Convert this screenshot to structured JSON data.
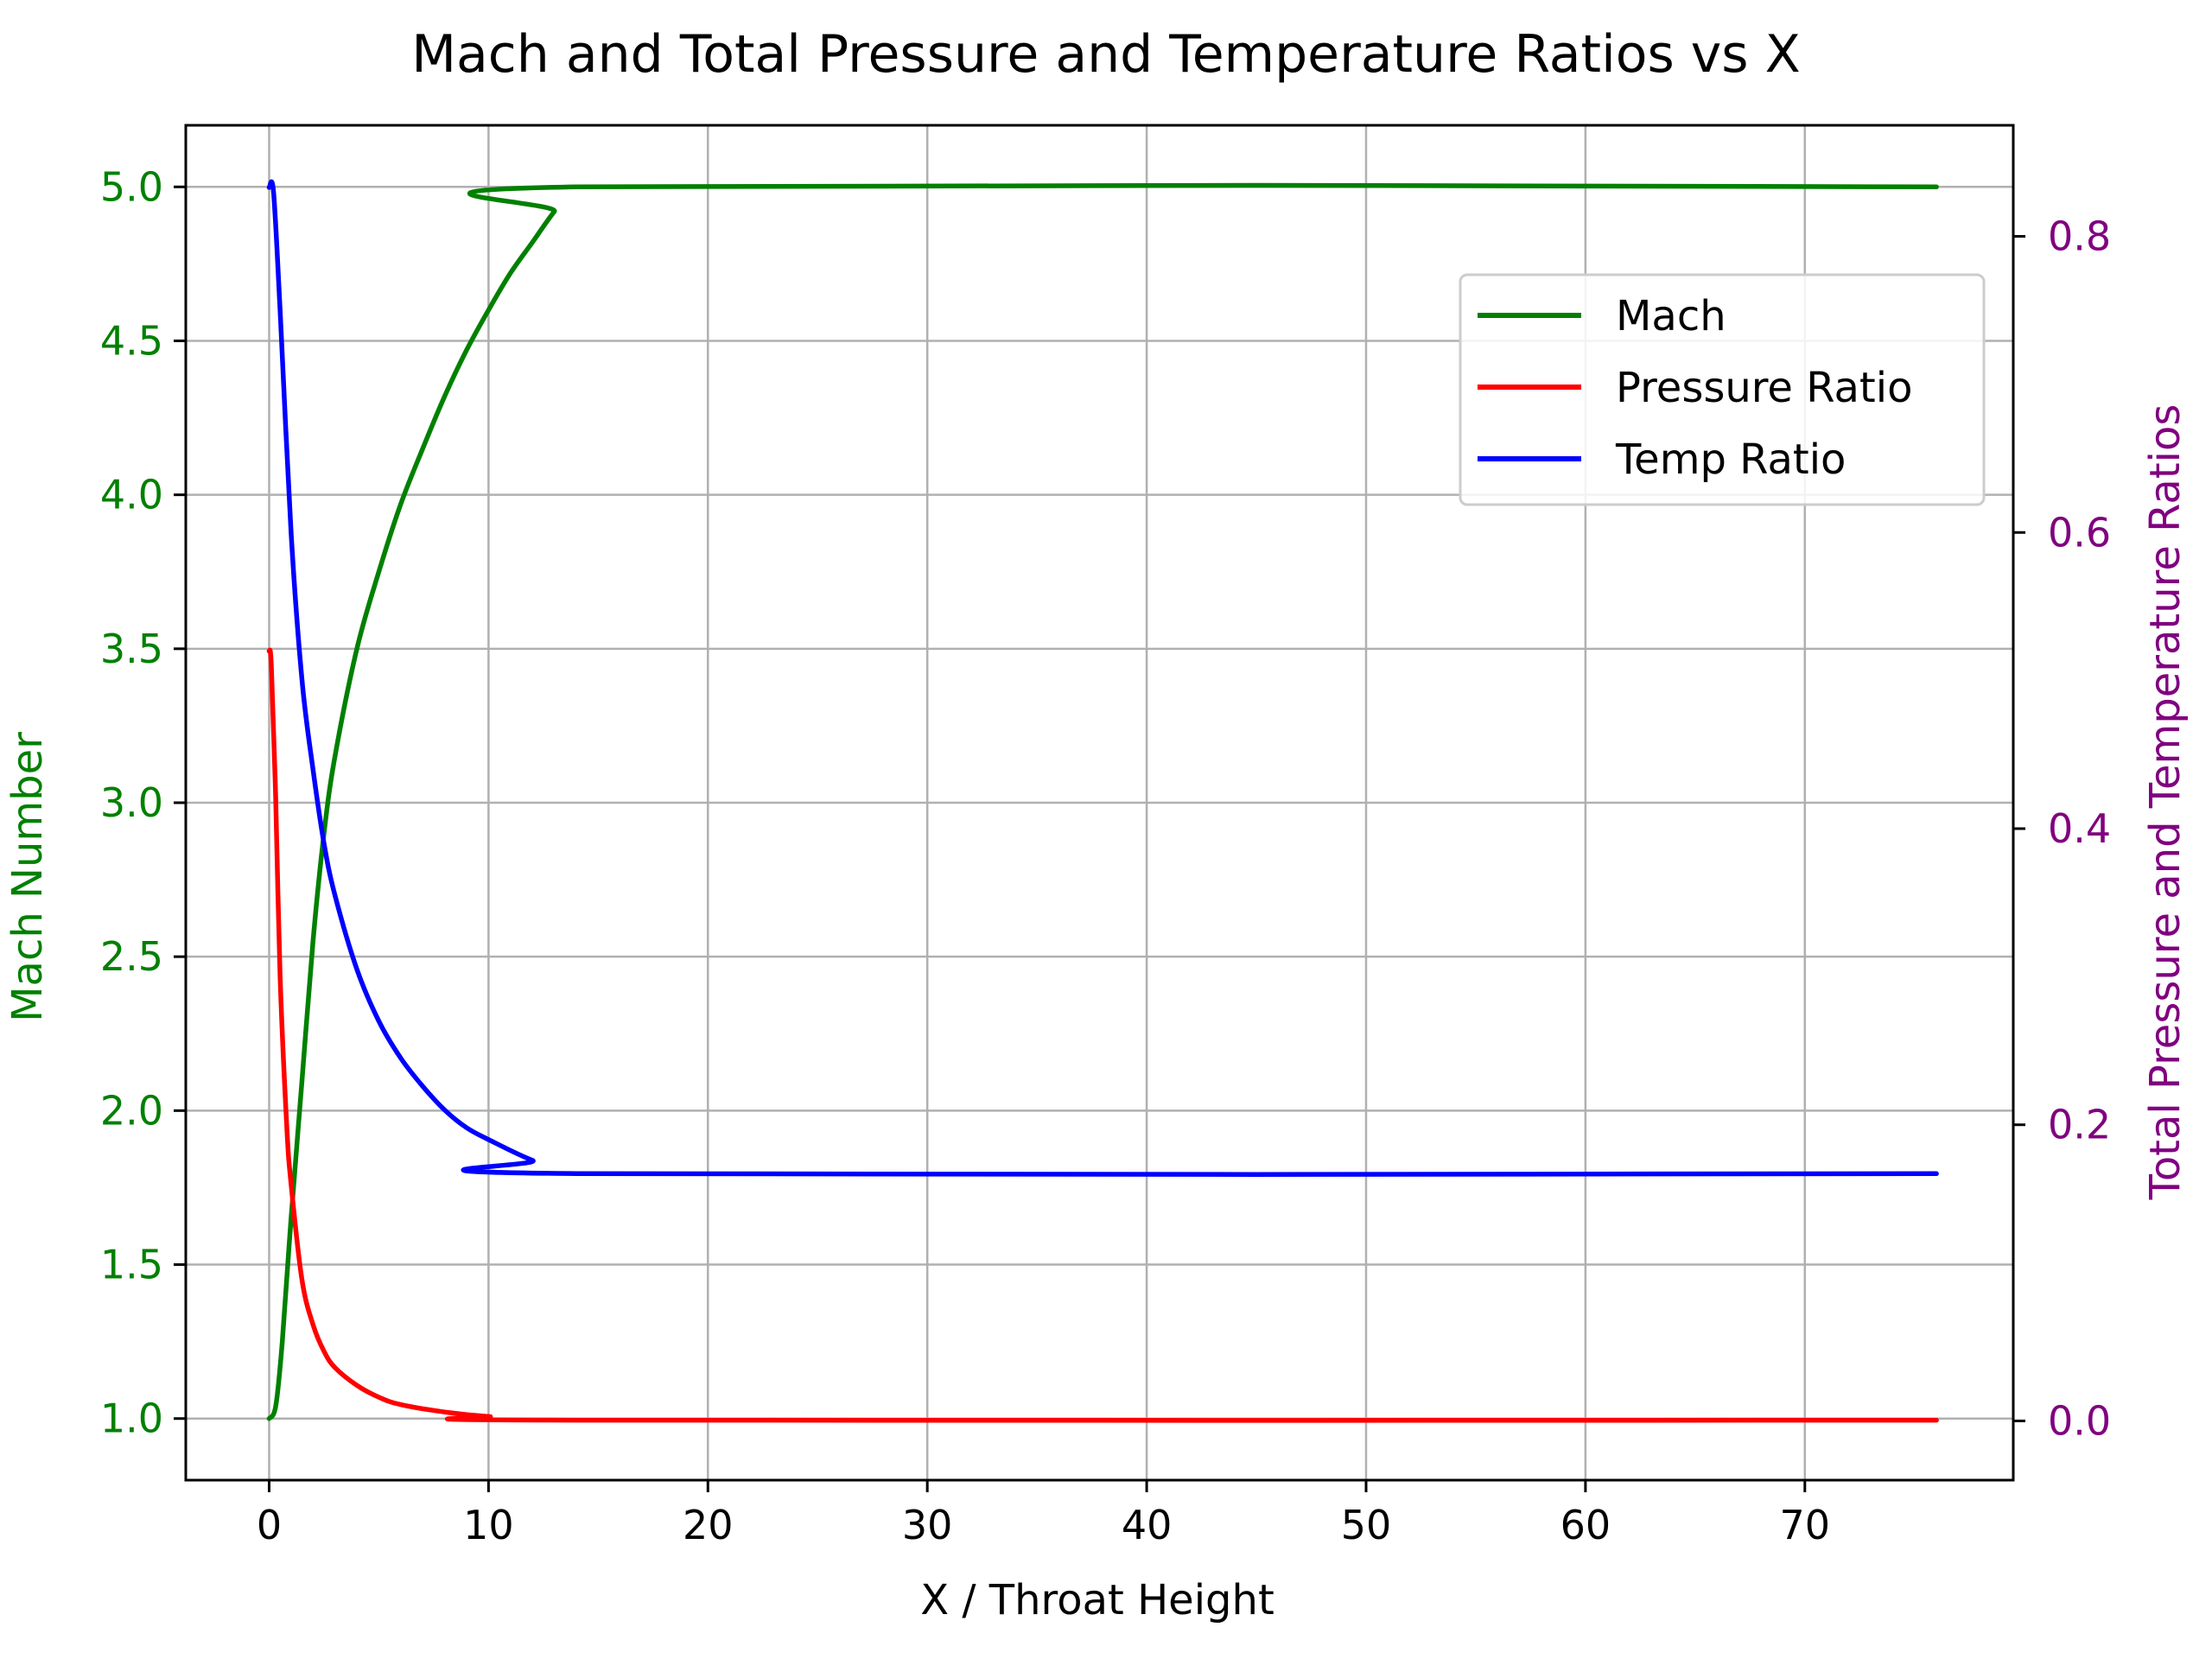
{
  "chart_data": {
    "type": "line",
    "title": "Mach and Total Pressure and Temperature Ratios vs X",
    "xlabel": "X / Throat Height",
    "ylabel_left": "Mach Number",
    "ylabel_right": "Total Pressure and Temperature Ratios",
    "xlim": [
      -3.8,
      79.5
    ],
    "ylim_left": [
      0.8,
      5.2
    ],
    "ylim_right": [
      -0.04,
      0.875
    ],
    "x_ticks": [
      0,
      10,
      20,
      30,
      40,
      50,
      60,
      70
    ],
    "y_left_ticks": [
      "1.0",
      "1.5",
      "2.0",
      "2.5",
      "3.0",
      "3.5",
      "4.0",
      "4.5",
      "5.0"
    ],
    "y_right_ticks": [
      "0.0",
      "0.2",
      "0.4",
      "0.6",
      "0.8"
    ],
    "grid": true,
    "legend_position": "upper-right",
    "colors": {
      "mach": "#008000",
      "pressure": "#ff0000",
      "temp": "#0000ff",
      "left_axis": "#008000",
      "right_axis": "#800080",
      "grid": "#b0b0b0"
    },
    "series": [
      {
        "name": "Mach",
        "axis": "left",
        "color": "#008000",
        "points": [
          [
            0,
            1.0
          ],
          [
            0.3,
            1.04
          ],
          [
            0.6,
            1.25
          ],
          [
            1,
            1.65
          ],
          [
            1.5,
            2.1
          ],
          [
            2,
            2.55
          ],
          [
            2.5,
            2.9
          ],
          [
            3,
            3.15
          ],
          [
            4,
            3.5
          ],
          [
            5,
            3.75
          ],
          [
            6,
            3.97
          ],
          [
            7,
            4.15
          ],
          [
            8,
            4.32
          ],
          [
            9,
            4.47
          ],
          [
            10,
            4.6
          ],
          [
            11,
            4.72
          ],
          [
            12,
            4.82
          ],
          [
            13,
            4.92
          ],
          [
            14,
            5.0
          ],
          [
            76,
            5.0
          ]
        ]
      },
      {
        "name": "Pressure Ratio",
        "axis": "right",
        "color": "#ff0000",
        "points": [
          [
            0,
            0.52
          ],
          [
            0.1,
            0.51
          ],
          [
            0.3,
            0.42
          ],
          [
            0.5,
            0.3
          ],
          [
            0.8,
            0.2
          ],
          [
            1,
            0.16
          ],
          [
            1.5,
            0.095
          ],
          [
            2,
            0.065
          ],
          [
            2.5,
            0.047
          ],
          [
            3,
            0.036
          ],
          [
            4,
            0.024
          ],
          [
            5,
            0.016
          ],
          [
            6,
            0.011
          ],
          [
            8,
            0.006
          ],
          [
            10,
            0.003
          ],
          [
            14,
            0.0005
          ],
          [
            76,
            0.0005
          ]
        ]
      },
      {
        "name": "Temp Ratio",
        "axis": "right",
        "color": "#0000ff",
        "points": [
          [
            0,
            0.833
          ],
          [
            0.2,
            0.83
          ],
          [
            0.5,
            0.75
          ],
          [
            1,
            0.6
          ],
          [
            1.5,
            0.5
          ],
          [
            2,
            0.44
          ],
          [
            2.5,
            0.39
          ],
          [
            3,
            0.355
          ],
          [
            4,
            0.305
          ],
          [
            5,
            0.27
          ],
          [
            6,
            0.245
          ],
          [
            7,
            0.226
          ],
          [
            8,
            0.21
          ],
          [
            9,
            0.198
          ],
          [
            10,
            0.19
          ],
          [
            12,
            0.176
          ],
          [
            14,
            0.167
          ],
          [
            76,
            0.167
          ]
        ]
      }
    ]
  }
}
